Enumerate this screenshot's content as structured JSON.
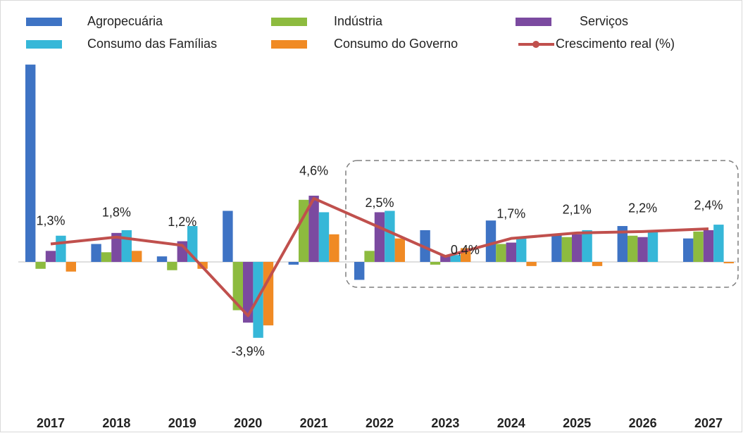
{
  "chart_data": {
    "type": "bar",
    "categories": [
      "2017",
      "2018",
      "2019",
      "2020",
      "2021",
      "2022",
      "2023",
      "2024",
      "2025",
      "2026",
      "2027"
    ],
    "series": [
      {
        "name": "Agropecuária",
        "color": "#3e73c4",
        "values": [
          14.3,
          1.3,
          0.4,
          3.7,
          -0.2,
          -1.3,
          2.3,
          3.0,
          2.0,
          2.6,
          1.7
        ]
      },
      {
        "name": "Indústria",
        "color": "#8dbb3f",
        "values": [
          -0.5,
          0.7,
          -0.6,
          -3.5,
          4.5,
          0.8,
          -0.2,
          1.3,
          1.8,
          1.9,
          2.2
        ]
      },
      {
        "name": "Serviços",
        "color": "#7b4aa0",
        "values": [
          0.8,
          2.1,
          1.5,
          -4.4,
          4.8,
          3.6,
          0.5,
          1.4,
          2.0,
          1.8,
          2.3
        ]
      },
      {
        "name": "Consumo das Famílias",
        "color": "#36b7d8",
        "values": [
          1.9,
          2.3,
          2.6,
          -5.5,
          3.6,
          3.7,
          0.5,
          1.8,
          2.3,
          2.3,
          2.7
        ]
      },
      {
        "name": "Consumo do Governo",
        "color": "#f08a24",
        "values": [
          -0.7,
          0.8,
          -0.5,
          -4.6,
          2.0,
          1.7,
          1.0,
          -0.3,
          -0.3,
          0,
          -0.1
        ]
      },
      {
        "name": "Crescimento real (%)",
        "color": "#c0504d",
        "type": "line",
        "values": [
          1.3,
          1.8,
          1.2,
          -3.9,
          4.6,
          2.5,
          0.4,
          1.7,
          2.1,
          2.2,
          2.4
        ],
        "value_labels": [
          "1,3%",
          "1,8%",
          "1,2%",
          "-3,9%",
          "4,6%",
          "2,5%",
          "0,4%",
          "1,7%",
          "2,1%",
          "2,2%",
          "2,4%"
        ]
      }
    ],
    "ylim": [
      -10,
      15
    ]
  }
}
